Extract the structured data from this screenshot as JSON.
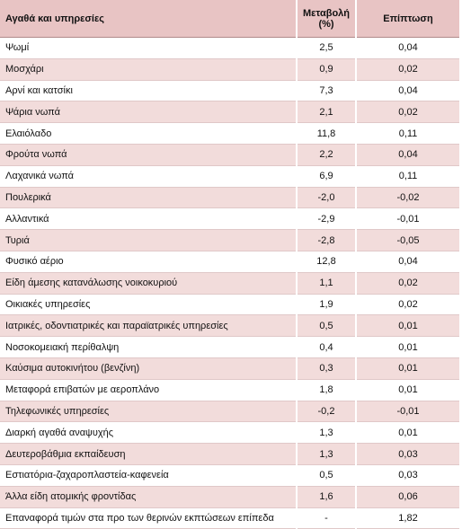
{
  "table": {
    "header": [
      "Αγαθά και υπηρεσίες",
      "Μεταβολή (%)",
      "Επίπτωση"
    ],
    "rows": [
      [
        "Ψωμί",
        "2,5",
        "0,04"
      ],
      [
        "Μοσχάρι",
        "0,9",
        "0,02"
      ],
      [
        "Αρνί και κατσίκι",
        "7,3",
        "0,04"
      ],
      [
        "Ψάρια νωπά",
        "2,1",
        "0,02"
      ],
      [
        "Ελαιόλαδο",
        "11,8",
        "0,11"
      ],
      [
        "Φρούτα νωπά",
        "2,2",
        "0,04"
      ],
      [
        "Λαχανικά νωπά",
        "6,9",
        "0,11"
      ],
      [
        "Πουλερικά",
        "-2,0",
        "-0,02"
      ],
      [
        "Αλλαντικά",
        "-2,9",
        "-0,01"
      ],
      [
        "Τυριά",
        "-2,8",
        "-0,05"
      ],
      [
        "Φυσικό αέριο",
        "12,8",
        "0,04"
      ],
      [
        "Είδη άμεσης κατανάλωσης νοικοκυριού",
        "1,1",
        "0,02"
      ],
      [
        "Οικιακές υπηρεσίες",
        "1,9",
        "0,02"
      ],
      [
        "Ιατρικές, οδοντιατρικές και παραϊατρικές υπηρεσίες",
        "0,5",
        "0,01"
      ],
      [
        "Νοσοκομειακή περίθαλψη",
        "0,4",
        "0,01"
      ],
      [
        "Καύσιμα αυτοκινήτου (βενζίνη)",
        "0,3",
        "0,01"
      ],
      [
        "Μεταφορά επιβατών με αεροπλάνο",
        "1,8",
        "0,01"
      ],
      [
        "Τηλεφωνικές υπηρεσίες",
        "-0,2",
        "-0,01"
      ],
      [
        "Διαρκή αγαθά αναψυχής",
        "1,3",
        "0,01"
      ],
      [
        "Δευτεροβάθμια εκπαίδευση",
        "1,3",
        "0,03"
      ],
      [
        "Εστιατόρια-ζαχαροπλαστεία-καφενεία",
        "0,5",
        "0,03"
      ],
      [
        "Άλλα είδη ατομικής φροντίδας",
        "1,6",
        "0,06"
      ],
      [
        "Επαναφορά τιμών στα προ των θερινών εκπτώσεων επίπεδα",
        "-",
        "1,82"
      ]
    ]
  }
}
